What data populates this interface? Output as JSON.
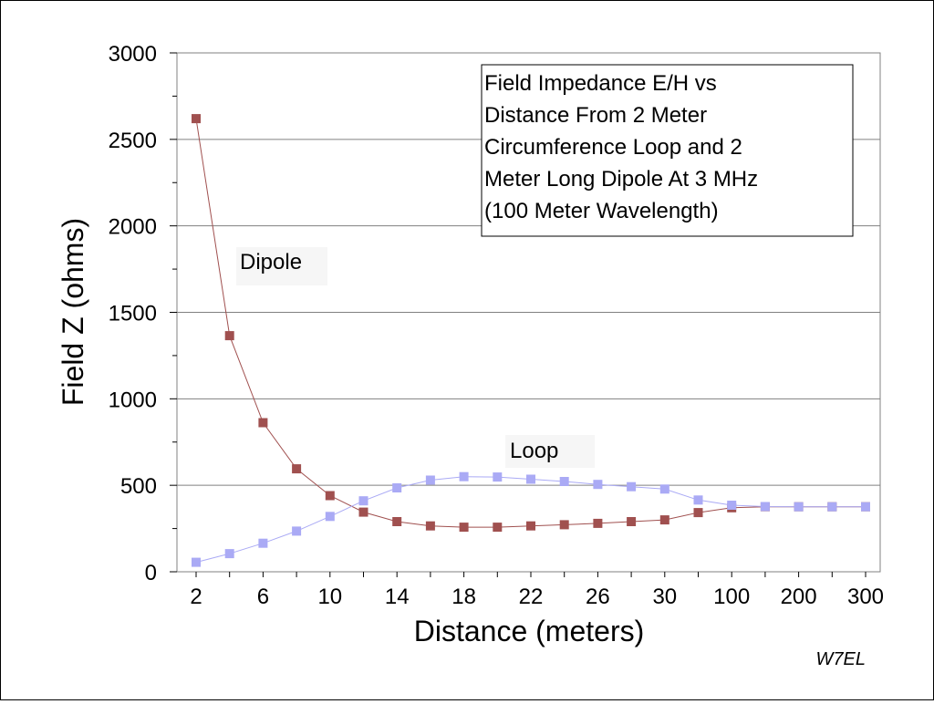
{
  "chart_data": {
    "type": "line",
    "title": "Field Impedance E/H vs Distance From 2 Meter Circumference Loop and 2 Meter Long Dipole At 3 MHz (100 Meter Wavelength)",
    "title_lines": [
      "Field Impedance E/H vs",
      "Distance From 2 Meter",
      "Circumference Loop and 2",
      "Meter Long Dipole At 3 MHz",
      "(100 Meter Wavelength)"
    ],
    "xlabel": "Distance (meters)",
    "ylabel": "Field Z (ohms)",
    "ylim": [
      0,
      3000
    ],
    "yticks": [
      0,
      500,
      1000,
      1500,
      2000,
      2500,
      3000
    ],
    "x_scale": "categorical",
    "categories": [
      "2",
      "4",
      "6",
      "8",
      "10",
      "12",
      "14",
      "16",
      "18",
      "20",
      "22",
      "24",
      "26",
      "28",
      "30",
      "50",
      "100",
      "150",
      "200",
      "250",
      "300"
    ],
    "x_tick_labels": [
      "2",
      "6",
      "10",
      "14",
      "18",
      "22",
      "26",
      "30",
      "100",
      "200",
      "300"
    ],
    "grid": "horizontal",
    "legend": "none",
    "series": [
      {
        "name": "Dipole",
        "color": "#a0504f",
        "marker": "square",
        "values": [
          2620,
          1365,
          862,
          595,
          440,
          345,
          290,
          265,
          258,
          258,
          265,
          272,
          280,
          290,
          300,
          342,
          370,
          376,
          376,
          376,
          376
        ]
      },
      {
        "name": "Loop",
        "color": "#aaaaf5",
        "marker": "square",
        "values": [
          55,
          105,
          165,
          235,
          320,
          410,
          485,
          530,
          550,
          548,
          535,
          522,
          505,
          492,
          478,
          415,
          385,
          377,
          376,
          376,
          376
        ]
      }
    ],
    "annotations": [
      "Dipole",
      "Loop"
    ],
    "credit": "W7EL"
  }
}
